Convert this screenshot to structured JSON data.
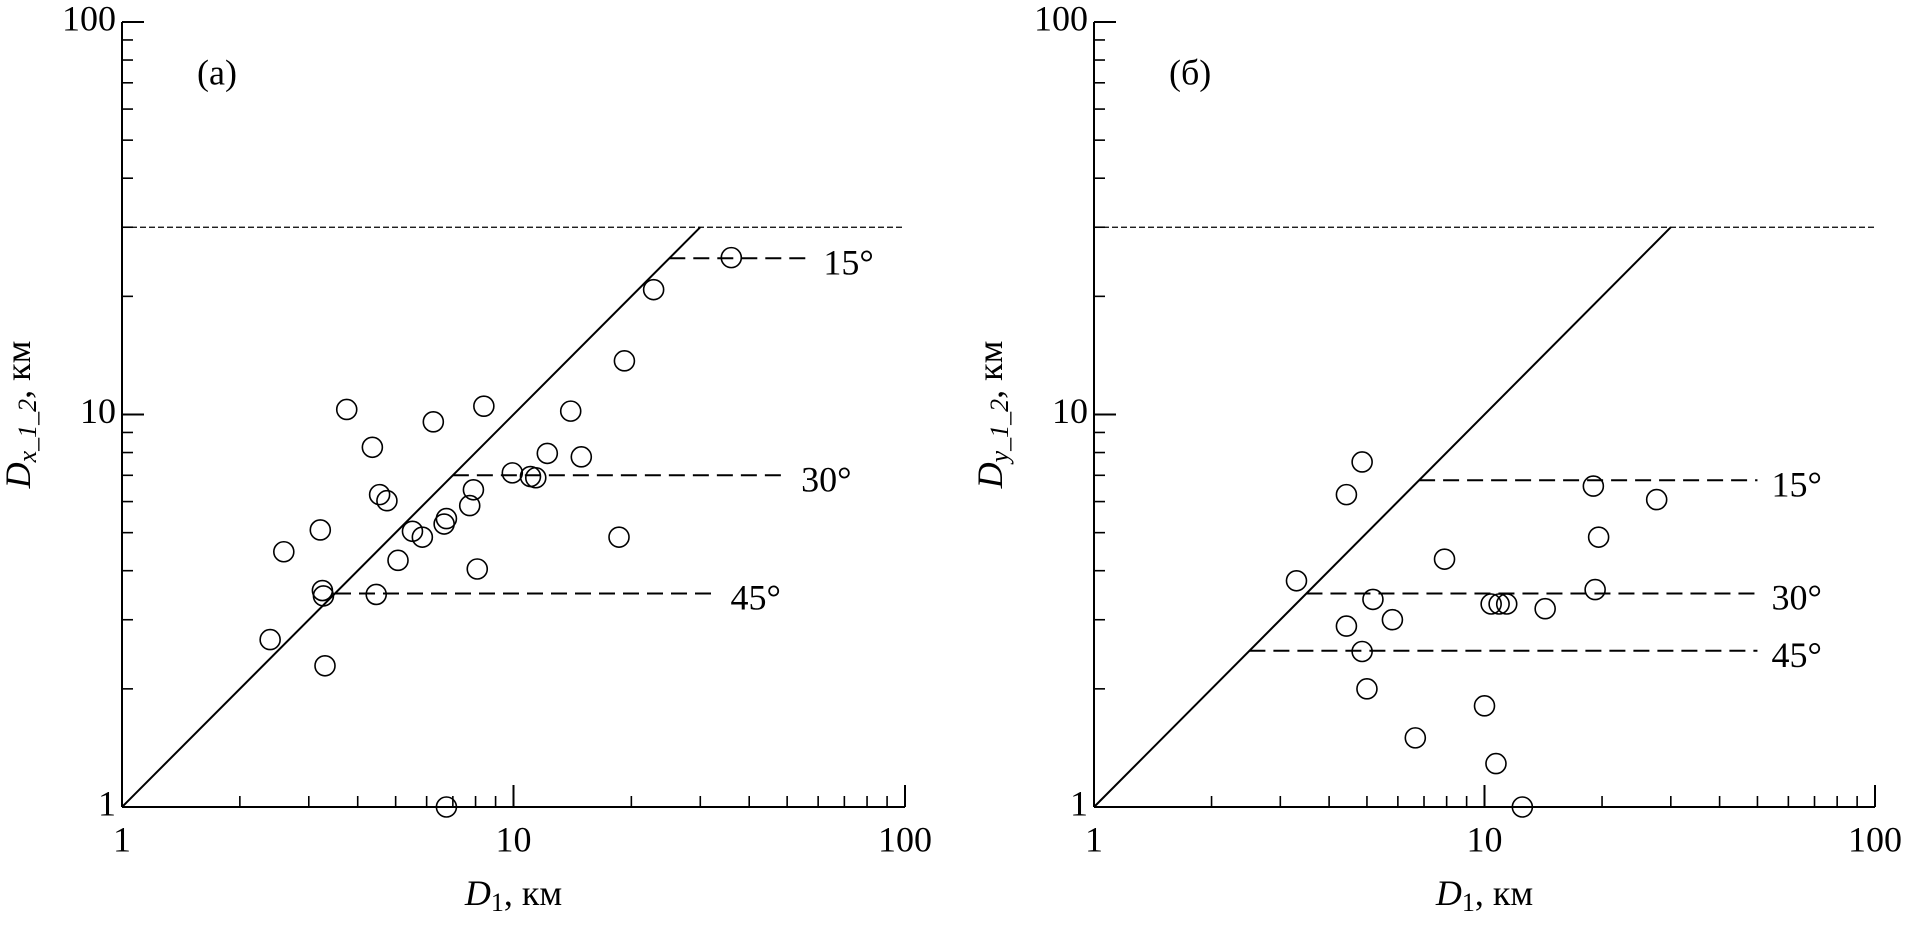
{
  "chart_data": [
    {
      "type": "scatter",
      "panel_label": "(а)",
      "x_label": [
        "D",
        "1",
        ", км"
      ],
      "y_label": [
        "D",
        "x_1_2",
        ", км"
      ],
      "log_x": true,
      "log_y": true,
      "xlim": [
        1,
        100
      ],
      "ylim": [
        1,
        100
      ],
      "xticks": [
        1,
        10,
        100
      ],
      "yticks": [
        1,
        10,
        100
      ],
      "xminorticks": [
        2,
        3,
        4,
        5,
        6,
        7,
        8,
        9,
        20,
        30,
        40,
        50,
        60,
        70,
        80,
        90
      ],
      "yminorticks": [
        2,
        3,
        4,
        5,
        6,
        7,
        8,
        9,
        20,
        30,
        40,
        50,
        60,
        70,
        80,
        90
      ],
      "x": [
        2.39,
        2.59,
        3.21,
        3.25,
        3.27,
        3.3,
        3.75,
        4.36,
        4.46,
        4.55,
        4.75,
        5.07,
        5.52,
        5.85,
        6.24,
        6.65,
        6.74,
        7.73,
        7.9,
        8.08,
        8.4,
        9.93,
        11.05,
        11.4,
        12.2,
        14.0,
        14.9,
        18.6,
        19.2,
        22.8,
        36.0,
        6.74
      ],
      "values": [
        2.67,
        4.47,
        5.08,
        3.56,
        3.45,
        2.29,
        10.3,
        8.25,
        3.48,
        6.25,
        6.03,
        4.25,
        5.04,
        4.87,
        9.58,
        5.26,
        5.43,
        5.86,
        6.43,
        4.04,
        10.5,
        7.1,
        6.95,
        6.9,
        7.96,
        10.2,
        7.8,
        4.87,
        13.7,
        20.8,
        25.1,
        1.0
      ],
      "lines": [
        {
          "x": [
            1,
            30
          ],
          "y": [
            1,
            30
          ],
          "dash": "solid"
        },
        {
          "x": [
            1,
            100
          ],
          "y": [
            30,
            30
          ],
          "dash": "dotted"
        }
      ],
      "angle_lines": [
        {
          "label": "15°",
          "x": [
            25,
            57
          ],
          "y": [
            25,
            25
          ]
        },
        {
          "x": [
            7,
            50
          ],
          "y": [
            7,
            7
          ],
          "label": "30°"
        },
        {
          "x": [
            3.5,
            33
          ],
          "y": [
            3.5,
            3.5
          ],
          "label": "45°"
        }
      ]
    },
    {
      "type": "scatter",
      "panel_label": "(б)",
      "x_label": [
        "D",
        "1",
        ", км"
      ],
      "y_label": [
        "D",
        "y_1_2",
        ", км"
      ],
      "log_x": true,
      "log_y": true,
      "xlim": [
        1,
        100
      ],
      "ylim": [
        1,
        100
      ],
      "xticks": [
        1,
        10,
        100
      ],
      "yticks": [
        1,
        10,
        100
      ],
      "xminorticks": [
        2,
        3,
        4,
        5,
        6,
        7,
        8,
        9,
        20,
        30,
        40,
        50,
        60,
        70,
        80,
        90
      ],
      "yminorticks": [
        2,
        3,
        4,
        5,
        6,
        7,
        8,
        9,
        20,
        30,
        40,
        50,
        60,
        70,
        80,
        90
      ],
      "x": [
        3.3,
        4.43,
        4.86,
        4.43,
        4.86,
        5.0,
        5.18,
        5.81,
        6.65,
        7.9,
        10.0,
        10.4,
        10.9,
        11.4,
        10.7,
        12.5,
        14.3,
        19.0,
        19.2,
        19.6,
        27.6
      ],
      "values": [
        3.77,
        6.25,
        7.57,
        2.89,
        2.49,
        2.0,
        3.38,
        3.0,
        1.5,
        4.28,
        1.81,
        3.29,
        3.29,
        3.29,
        1.29,
        1.0,
        3.2,
        6.57,
        3.58,
        4.87,
        6.07
      ],
      "lines": [
        {
          "x": [
            1,
            30
          ],
          "y": [
            1,
            30
          ],
          "dash": "solid"
        },
        {
          "x": [
            1,
            100
          ],
          "y": [
            30,
            30
          ],
          "dash": "dotted"
        }
      ],
      "angle_lines": [
        {
          "label": "15°",
          "x": [
            6.8,
            50
          ],
          "y": [
            6.8,
            6.8
          ]
        },
        {
          "x": [
            3.5,
            50
          ],
          "y": [
            3.5,
            3.5
          ],
          "label": "30°"
        },
        {
          "x": [
            2.5,
            50
          ],
          "y": [
            2.5,
            2.5
          ],
          "label": "45°"
        }
      ]
    }
  ]
}
